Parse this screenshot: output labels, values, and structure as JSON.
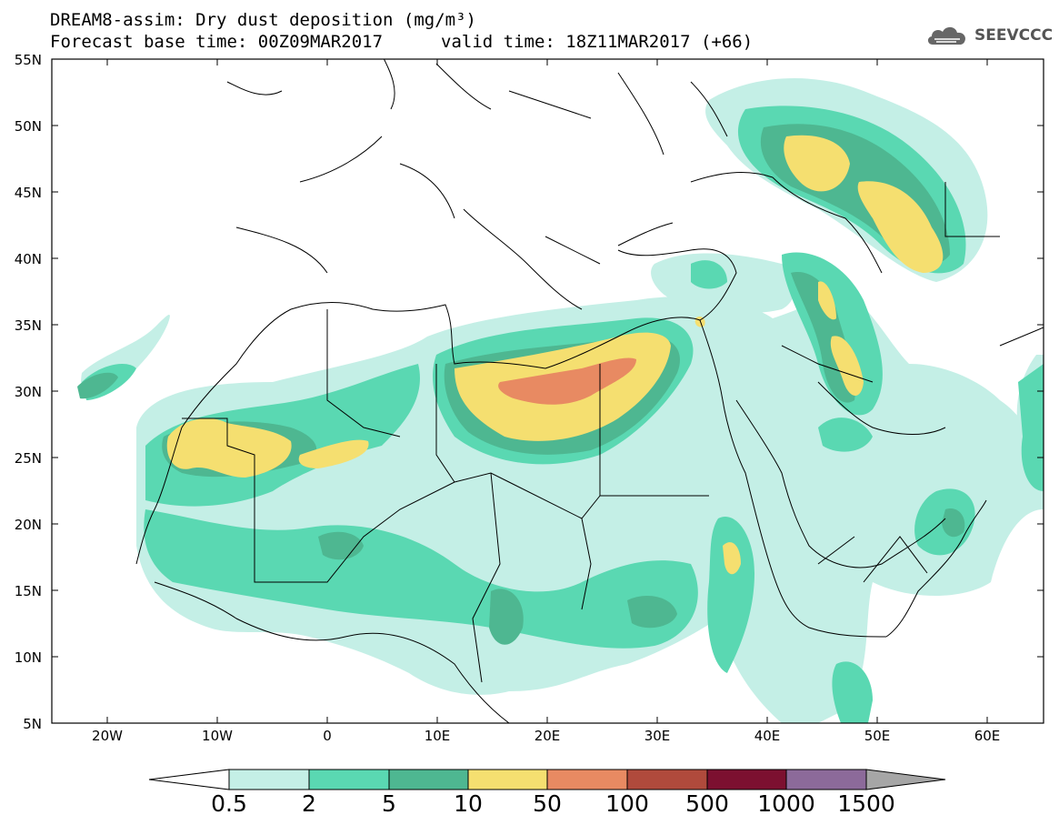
{
  "title": {
    "line1": "DREAM8-assim: Dry dust deposition (mg/m³)",
    "line2_left": "Forecast base time: 00Z09MAR2017",
    "line2_right": "valid time: 18Z11MAR2017 (+66)"
  },
  "logo": {
    "text": "SEEVCCC",
    "icon": "cloud-icon"
  },
  "axes": {
    "lat_labels": [
      "55N",
      "50N",
      "45N",
      "40N",
      "35N",
      "30N",
      "25N",
      "20N",
      "15N",
      "10N",
      "5N"
    ],
    "lon_labels": [
      "20W",
      "10W",
      "0",
      "10E",
      "20E",
      "30E",
      "40E",
      "50E",
      "60E"
    ],
    "lon_range": [
      "25W",
      "65E"
    ],
    "lat_range": [
      "5N",
      "55N"
    ]
  },
  "colorbar": {
    "labels": [
      "0.5",
      "2",
      "5",
      "10",
      "50",
      "100",
      "500",
      "1000",
      "1500"
    ],
    "colors": [
      "#c4efe6",
      "#5ad8b2",
      "#4eb791",
      "#f5df70",
      "#e88a62",
      "#b04a3c",
      "#7c1030",
      "#8c6a9a",
      "#a6a6a6"
    ]
  },
  "map_features": {
    "background": "#ffffff",
    "borders": "#000000",
    "shading_note_classes": [
      "0.5-2",
      "2-5",
      "5-10",
      "10-50",
      "50-100"
    ]
  }
}
